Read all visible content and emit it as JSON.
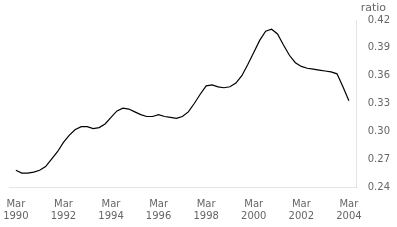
{
  "chart_data": {
    "type": "line",
    "ylabel": "ratio",
    "x": [
      1990.17,
      1990.42,
      1990.67,
      1990.92,
      1991.17,
      1991.42,
      1991.67,
      1991.92,
      1992.17,
      1992.42,
      1992.67,
      1992.92,
      1993.17,
      1993.42,
      1993.67,
      1993.92,
      1994.17,
      1994.42,
      1994.67,
      1994.92,
      1995.17,
      1995.42,
      1995.67,
      1995.92,
      1996.17,
      1996.42,
      1996.67,
      1996.92,
      1997.17,
      1997.42,
      1997.67,
      1997.92,
      1998.17,
      1998.42,
      1998.67,
      1998.92,
      1999.17,
      1999.42,
      1999.67,
      1999.92,
      2000.17,
      2000.42,
      2000.67,
      2000.92,
      2001.17,
      2001.42,
      2001.67,
      2001.92,
      2002.17,
      2002.42,
      2002.67,
      2002.92,
      2003.17,
      2003.42,
      2003.67,
      2003.92,
      2004.17
    ],
    "values": [
      0.258,
      0.255,
      0.255,
      0.256,
      0.258,
      0.262,
      0.27,
      0.278,
      0.288,
      0.296,
      0.302,
      0.305,
      0.305,
      0.303,
      0.304,
      0.308,
      0.315,
      0.322,
      0.325,
      0.324,
      0.321,
      0.318,
      0.316,
      0.316,
      0.318,
      0.316,
      0.315,
      0.314,
      0.316,
      0.321,
      0.33,
      0.34,
      0.349,
      0.35,
      0.348,
      0.347,
      0.348,
      0.352,
      0.36,
      0.372,
      0.385,
      0.398,
      0.408,
      0.41,
      0.405,
      0.393,
      0.382,
      0.374,
      0.37,
      0.368,
      0.367,
      0.366,
      0.365,
      0.364,
      0.362,
      0.348,
      0.333
    ],
    "color": "#000000",
    "xlim": [
      1989.9,
      2004.5
    ],
    "xticks": [
      {
        "value": 1990.17,
        "label": "Mar\n1990"
      },
      {
        "value": 1992.17,
        "label": "Mar\n1992"
      },
      {
        "value": 1994.17,
        "label": "Mar\n1994"
      },
      {
        "value": 1996.17,
        "label": "Mar\n1996"
      },
      {
        "value": 1998.17,
        "label": "Mar\n1998"
      },
      {
        "value": 2000.17,
        "label": "Mar\n2000"
      },
      {
        "value": 2002.17,
        "label": "Mar\n2002"
      },
      {
        "value": 2004.17,
        "label": "Mar\n2004"
      }
    ],
    "ylim": [
      0.24,
      0.42
    ],
    "yticks": [
      0.24,
      0.27,
      {
        "value": 0.3,
        "label": "0.30"
      },
      0.33,
      0.36,
      0.39,
      0.42
    ],
    "grid": false
  }
}
